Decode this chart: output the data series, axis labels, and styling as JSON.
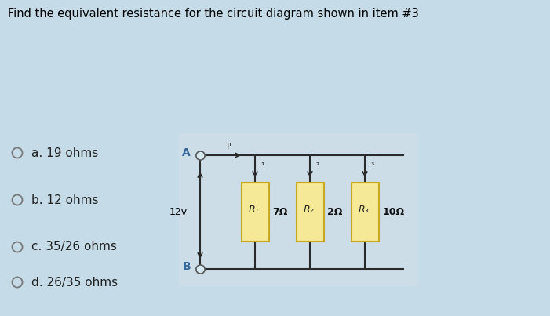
{
  "title": "Find the equivalent resistance for the circuit diagram shown in item #3",
  "bg_color": "#c5dce8",
  "circuit_bg": "#cce0ea",
  "resistor_fill": "#f5e896",
  "resistor_stroke": "#c8a820",
  "wire_color": "#2a2a2a",
  "arrow_color": "#2a2a2a",
  "voltage": "12v",
  "node_A": "A",
  "node_B": "B",
  "current_T": "Iᵀ",
  "resistors": [
    {
      "label": "R₁",
      "value": "7Ω",
      "current": "I₁"
    },
    {
      "label": "R₂",
      "value": "2Ω",
      "current": "I₂"
    },
    {
      "label": "R₃",
      "value": "10Ω",
      "current": "I₃"
    }
  ],
  "choices": [
    "a. 19 ohms",
    "b. 12 ohms",
    "c. 35/26 ohms",
    "d. 26/35 ohms"
  ],
  "title_fontsize": 10.5,
  "choice_fontsize": 11
}
